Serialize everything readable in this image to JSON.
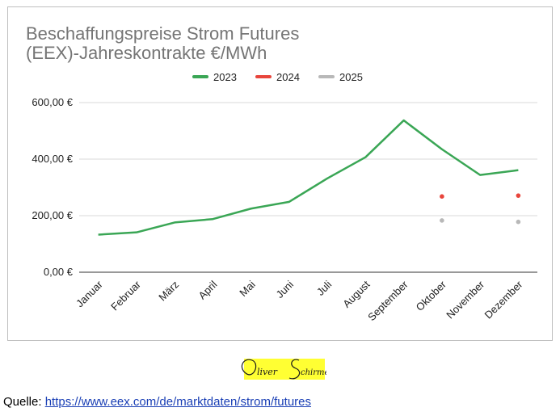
{
  "chart_data": {
    "type": "line",
    "title_lines": [
      "Beschaffungspreise Strom Futures",
      "(EEX)-Jahreskontrakte €/MWh"
    ],
    "categories": [
      "Januar",
      "Februar",
      "März",
      "April",
      "Mai",
      "Juni",
      "Juli",
      "August",
      "September",
      "Oktober",
      "November",
      "Dezember"
    ],
    "series": [
      {
        "name": "2023",
        "color": "#3aa655",
        "style": "line",
        "values": [
          133,
          141,
          176,
          188,
          225,
          249,
          332,
          407,
          537,
          435,
          344,
          361
        ]
      },
      {
        "name": "2024",
        "color": "#e8453c",
        "style": "points",
        "values": [
          null,
          null,
          null,
          null,
          null,
          null,
          null,
          null,
          null,
          268,
          null,
          271
        ]
      },
      {
        "name": "2025",
        "color": "#b8b8b8",
        "style": "points",
        "values": [
          null,
          null,
          null,
          null,
          null,
          null,
          null,
          null,
          null,
          183,
          null,
          178
        ]
      }
    ],
    "y_ticks": [
      0,
      200,
      400,
      600
    ],
    "y_tick_labels": [
      "0,00 €",
      "200,00 €",
      "400,00 €",
      "600,00 €"
    ],
    "ylim": [
      0,
      600
    ],
    "grid": true,
    "legend_position": "top-center"
  },
  "colors": {
    "title": "#757575",
    "grid": "#d9d9d9",
    "axis_text": "#222222",
    "signature_highlight": "#ffff33"
  },
  "signature": {
    "text": "Oliver Schirmer"
  },
  "source": {
    "label": "Quelle: ",
    "link_text": "https://www.eex.com/de/marktdaten/strom/futures"
  }
}
